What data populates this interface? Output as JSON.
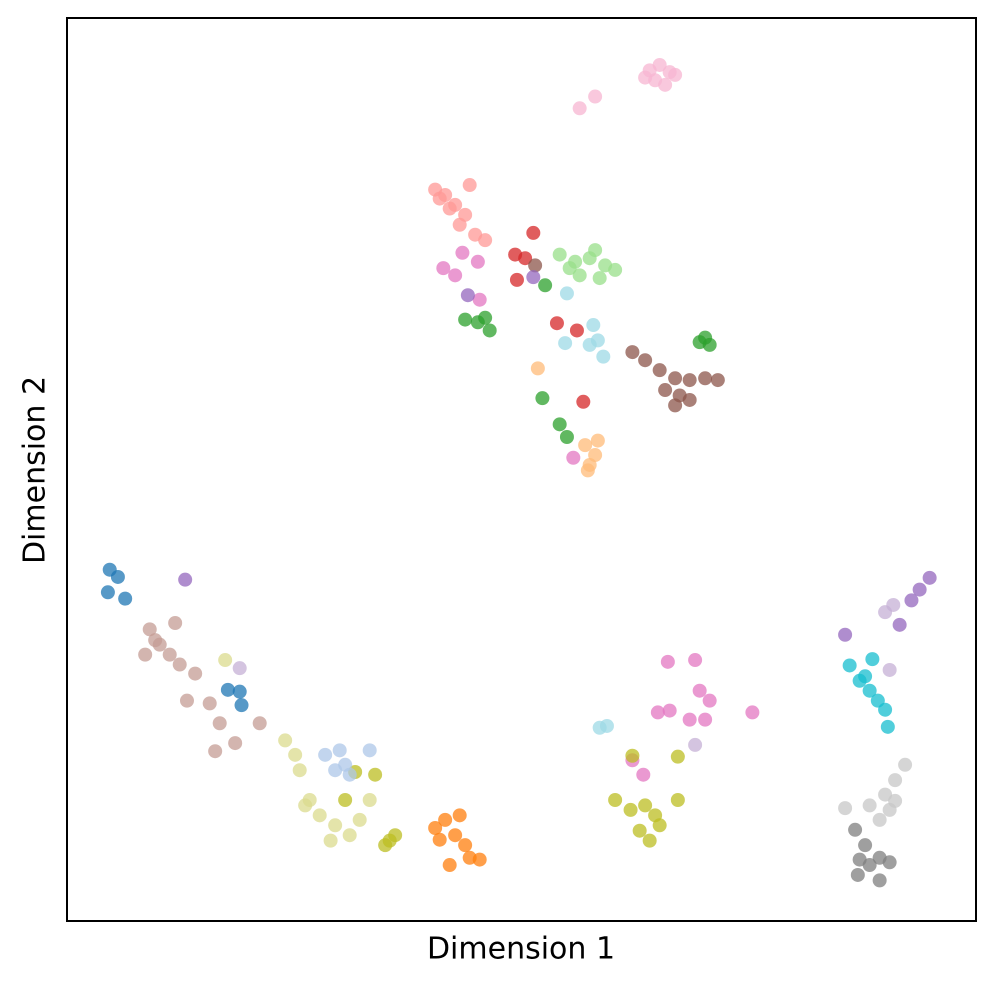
{
  "chart_data": {
    "type": "scatter",
    "x_label": "Dimension 1",
    "y_label": "Dimension 2",
    "xlim": [
      0,
      100
    ],
    "ylim": [
      0,
      100
    ],
    "series": [
      {
        "color": "#f7b6d2",
        "x": [
          64.1,
          65.2,
          66.3,
          64.7,
          65.8,
          66.9,
          63.6,
          56.4,
          58.1
        ],
        "values": [
          94.2,
          94.8,
          94.0,
          93.1,
          92.6,
          93.7,
          93.4,
          90.0,
          91.3
        ]
      },
      {
        "color": "#ff9896",
        "x": [
          40.5,
          41.6,
          42.7,
          43.8,
          44.3,
          43.2,
          44.9,
          46.0,
          41.0,
          42.1
        ],
        "values": [
          81.0,
          80.4,
          79.3,
          78.2,
          81.5,
          77.1,
          76.0,
          75.4,
          80.0,
          78.9
        ]
      },
      {
        "color": "#98df8a",
        "x": [
          54.2,
          55.9,
          57.5,
          59.2,
          60.3,
          56.4,
          58.6,
          58.1,
          55.3
        ],
        "values": [
          73.8,
          73.0,
          73.4,
          72.6,
          72.1,
          71.5,
          71.2,
          74.3,
          72.3
        ]
      },
      {
        "color": "#d62728",
        "x": [
          49.3,
          50.4,
          51.3,
          49.5,
          53.9,
          56.1,
          56.8
        ],
        "values": [
          73.8,
          73.4,
          76.2,
          71.0,
          66.2,
          65.4,
          57.5
        ]
      },
      {
        "color": "#8c564b",
        "x": [
          62.2,
          63.6,
          65.2,
          66.9,
          68.5,
          70.2,
          71.6,
          67.4,
          65.8,
          68.5,
          66.9,
          51.5
        ],
        "values": [
          63.0,
          62.1,
          61.0,
          60.1,
          59.9,
          60.1,
          59.9,
          58.2,
          58.8,
          57.7,
          57.1,
          72.6
        ]
      },
      {
        "color": "#2ca02c",
        "x": [
          69.6,
          70.7,
          70.2,
          43.8,
          45.2,
          46.5,
          46.0,
          52.6,
          52.3,
          54.2,
          55.0
        ],
        "values": [
          64.1,
          63.8,
          64.6,
          66.6,
          66.3,
          65.4,
          66.8,
          70.4,
          57.9,
          55.0,
          53.6
        ]
      },
      {
        "color": "#9edae5",
        "x": [
          57.9,
          58.4,
          57.5,
          55.0,
          54.8,
          59.0,
          58.6,
          59.4
        ],
        "values": [
          66.0,
          64.3,
          63.8,
          69.5,
          64.0,
          62.5,
          21.4,
          21.6
        ]
      },
      {
        "color": "#ffbb78",
        "x": [
          57.0,
          58.1,
          57.5,
          58.4,
          57.3,
          51.8
        ],
        "values": [
          52.7,
          51.6,
          50.5,
          53.2,
          49.9,
          61.2
        ]
      },
      {
        "color": "#e377c2",
        "x": [
          41.4,
          42.7,
          45.2,
          43.5,
          45.4,
          55.7,
          66.1,
          69.1,
          69.6,
          70.7,
          68.5,
          66.3,
          70.2,
          75.4,
          65.0,
          63.4,
          62.2
        ],
        "values": [
          72.3,
          71.5,
          73.0,
          74.0,
          68.8,
          51.3,
          28.7,
          28.9,
          25.5,
          24.4,
          22.3,
          23.3,
          22.3,
          23.1,
          23.1,
          16.2,
          17.8
        ]
      },
      {
        "color": "#9467bd",
        "x": [
          44.1,
          51.3,
          94.9,
          93.8,
          92.9,
          91.6,
          85.6,
          13.0
        ],
        "values": [
          69.3,
          71.3,
          38.0,
          36.7,
          35.5,
          32.8,
          31.7,
          37.8
        ]
      },
      {
        "color": "#c5b0d5",
        "x": [
          90.0,
          90.9,
          90.5,
          69.1,
          19.0
        ],
        "values": [
          34.2,
          35.0,
          27.8,
          19.5,
          28.0
        ]
      },
      {
        "color": "#17becf",
        "x": [
          86.1,
          87.2,
          88.3,
          89.2,
          90.0,
          88.6,
          90.3,
          87.8
        ],
        "values": [
          28.3,
          26.6,
          25.5,
          24.4,
          23.4,
          29.0,
          21.5,
          27.1
        ]
      },
      {
        "color": "#c7c7c7",
        "x": [
          92.2,
          91.1,
          90.0,
          90.5,
          89.4,
          88.3,
          85.6,
          91.1
        ],
        "values": [
          17.3,
          15.6,
          14.0,
          12.3,
          11.2,
          12.8,
          12.5,
          13.3
        ]
      },
      {
        "color": "#7f7f7f",
        "x": [
          86.7,
          87.2,
          88.3,
          89.4,
          90.5,
          87.0,
          89.4,
          87.8
        ],
        "values": [
          10.1,
          6.8,
          6.2,
          7.0,
          6.5,
          5.1,
          4.5,
          8.4
        ]
      },
      {
        "color": "#bcbd22",
        "x": [
          62.0,
          63.6,
          64.7,
          63.0,
          64.1,
          65.2,
          60.3,
          67.2,
          67.2,
          62.2,
          31.7,
          33.9,
          36.1,
          35.5,
          35.0,
          30.6
        ],
        "values": [
          12.3,
          12.8,
          11.7,
          10.0,
          8.9,
          10.6,
          13.4,
          13.4,
          18.2,
          18.3,
          16.5,
          16.2,
          9.5,
          8.9,
          8.4,
          13.4
        ]
      },
      {
        "color": "#ff7f0e",
        "x": [
          40.5,
          41.6,
          43.2,
          42.7,
          43.8,
          44.3,
          45.4,
          42.1,
          41.0
        ],
        "values": [
          10.3,
          11.2,
          11.7,
          9.5,
          8.4,
          7.0,
          6.8,
          6.2,
          9.0
        ]
      },
      {
        "color": "#dbdb8d",
        "x": [
          24.0,
          25.1,
          25.6,
          26.7,
          27.8,
          29.5,
          31.1,
          32.2,
          33.3,
          26.2,
          29.0,
          17.4
        ],
        "values": [
          20.0,
          18.4,
          16.7,
          13.4,
          11.7,
          10.6,
          9.5,
          11.2,
          13.4,
          12.8,
          8.9,
          28.9
        ]
      },
      {
        "color": "#aec7e8",
        "x": [
          28.4,
          30.0,
          30.6,
          29.5,
          33.3,
          31.1
        ],
        "values": [
          18.4,
          18.9,
          17.3,
          16.7,
          18.9,
          16.2
        ]
      },
      {
        "color": "#c49c94",
        "x": [
          9.1,
          10.2,
          11.3,
          12.4,
          8.6,
          14.1,
          13.2,
          15.7,
          16.8,
          18.5,
          16.3,
          21.2,
          9.7,
          11.9
        ],
        "values": [
          32.3,
          30.6,
          29.5,
          28.4,
          29.5,
          27.4,
          24.4,
          24.1,
          21.9,
          19.7,
          18.8,
          21.9,
          31.1,
          33.0
        ]
      },
      {
        "color": "#1f77b4",
        "x": [
          4.7,
          5.6,
          4.5,
          6.4,
          17.7,
          19.0,
          19.2
        ],
        "values": [
          38.9,
          38.1,
          36.4,
          35.7,
          25.6,
          25.4,
          23.9
        ]
      }
    ]
  }
}
